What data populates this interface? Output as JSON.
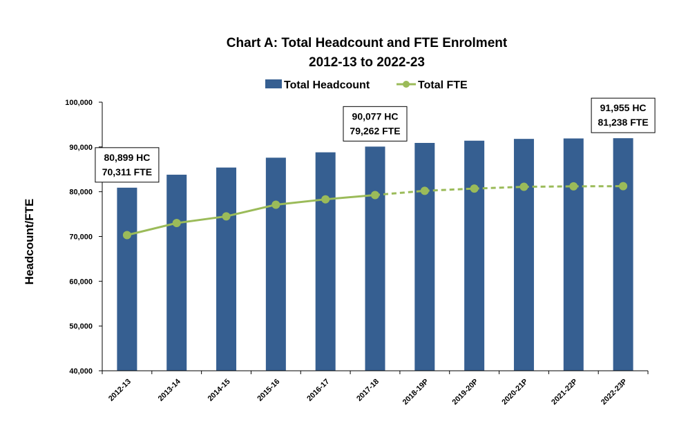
{
  "chart_data": {
    "type": "bar",
    "title": "Chart A: Total Headcount and FTE Enrolment",
    "subtitle": "2012-13 to 2022-23",
    "ylabel": "Headcount/FTE",
    "xlabel": "",
    "ylim": [
      40000,
      100000
    ],
    "yticks": [
      "40,000",
      "50,000",
      "60,000",
      "70,000",
      "80,000",
      "90,000",
      "100,000"
    ],
    "ytick_values": [
      40000,
      50000,
      60000,
      70000,
      80000,
      90000,
      100000
    ],
    "categories": [
      "2012-13",
      "2013-14",
      "2014-15",
      "2015-16",
      "2016-17",
      "2017-18",
      "2018-19P",
      "2019-20P",
      "2020-21P",
      "2021-22P",
      "2022-23P"
    ],
    "legend": {
      "position": "top"
    },
    "grid": false,
    "series": [
      {
        "name": "Total Headcount",
        "type": "bar",
        "color": "#365F91",
        "values": [
          80899,
          83800,
          85400,
          87600,
          88800,
          90077,
          90900,
          91400,
          91800,
          91900,
          91955
        ]
      },
      {
        "name": "Total FTE",
        "type": "line",
        "color": "#9BBB59",
        "projected_from_index": 5,
        "values": [
          70311,
          73000,
          74500,
          77100,
          78300,
          79262,
          80200,
          80700,
          81100,
          81200,
          81238
        ]
      }
    ],
    "annotations": [
      {
        "index": 0,
        "lines": [
          "80,899 HC",
          "70,311 FTE"
        ]
      },
      {
        "index": 5,
        "lines": [
          "90,077 HC",
          "79,262 FTE"
        ]
      },
      {
        "index": 10,
        "lines": [
          "91,955 HC",
          "81,238 FTE"
        ]
      }
    ]
  }
}
